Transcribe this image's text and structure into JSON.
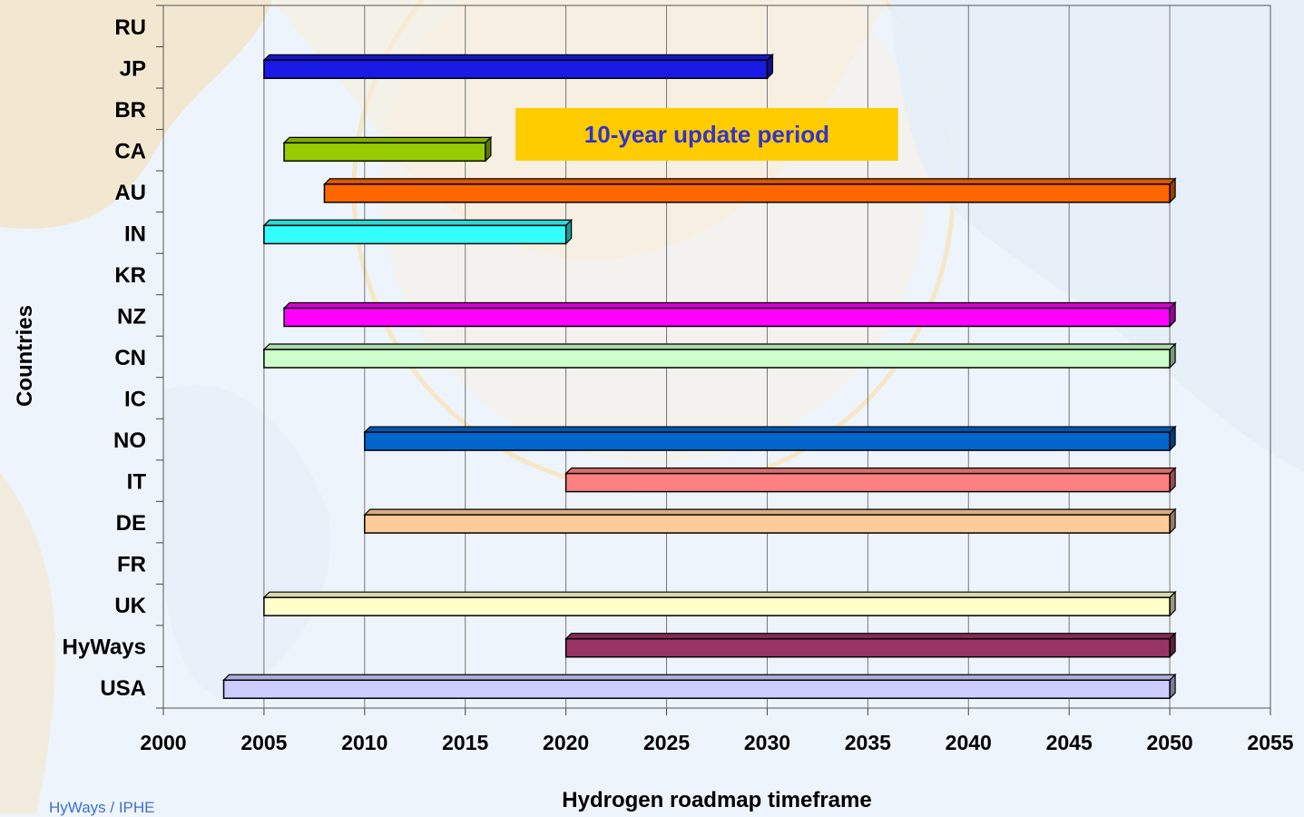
{
  "chart_data": {
    "type": "bar",
    "orientation": "horizontal",
    "title": "",
    "xlabel": "Hydrogen roadmap timeframe",
    "ylabel": "Countries",
    "xlim": [
      2000,
      2055
    ],
    "xticks": [
      "2000",
      "2005",
      "2010",
      "2015",
      "2020",
      "2025",
      "2030",
      "2035",
      "2040",
      "2045",
      "2050",
      "2055"
    ],
    "grid": "vertical",
    "categories": [
      "RU",
      "JP",
      "BR",
      "CA",
      "AU",
      "IN",
      "KR",
      "NZ",
      "CN",
      "IC",
      "NO",
      "IT",
      "DE",
      "FR",
      "UK",
      "HyWays",
      "USA"
    ],
    "ranges": [
      {
        "label": "RU",
        "start": null,
        "end": null,
        "color": null
      },
      {
        "label": "JP",
        "start": 2005,
        "end": 2030,
        "color": "#1a1ae6"
      },
      {
        "label": "BR",
        "start": null,
        "end": null,
        "color": null
      },
      {
        "label": "CA",
        "start": 2006,
        "end": 2016,
        "color": "#99cc00"
      },
      {
        "label": "AU",
        "start": 2008,
        "end": 2050,
        "color": "#ff6600"
      },
      {
        "label": "IN",
        "start": 2005,
        "end": 2020,
        "color": "#33ffff"
      },
      {
        "label": "KR",
        "start": null,
        "end": null,
        "color": null
      },
      {
        "label": "NZ",
        "start": 2006,
        "end": 2050,
        "color": "#ff00ff"
      },
      {
        "label": "CN",
        "start": 2005,
        "end": 2050,
        "color": "#ccffcc"
      },
      {
        "label": "IC",
        "start": null,
        "end": null,
        "color": null
      },
      {
        "label": "NO",
        "start": 2010,
        "end": 2050,
        "color": "#0066cc"
      },
      {
        "label": "IT",
        "start": 2020,
        "end": 2050,
        "color": "#ff8080"
      },
      {
        "label": "DE",
        "start": 2010,
        "end": 2050,
        "color": "#ffcc99"
      },
      {
        "label": "FR",
        "start": null,
        "end": null,
        "color": null
      },
      {
        "label": "UK",
        "start": 2005,
        "end": 2050,
        "color": "#ffffcc"
      },
      {
        "label": "HyWays",
        "start": 2020,
        "end": 2050,
        "color": "#993366"
      },
      {
        "label": "USA",
        "start": 2003,
        "end": 2050,
        "color": "#ccccff"
      }
    ],
    "annotation": {
      "text": "10-year update period",
      "background": "#ffcc00",
      "color": "#3333cc",
      "x_start": 2017.5,
      "x_end": 2036.5
    }
  },
  "source_note": "HyWays / IPHE"
}
